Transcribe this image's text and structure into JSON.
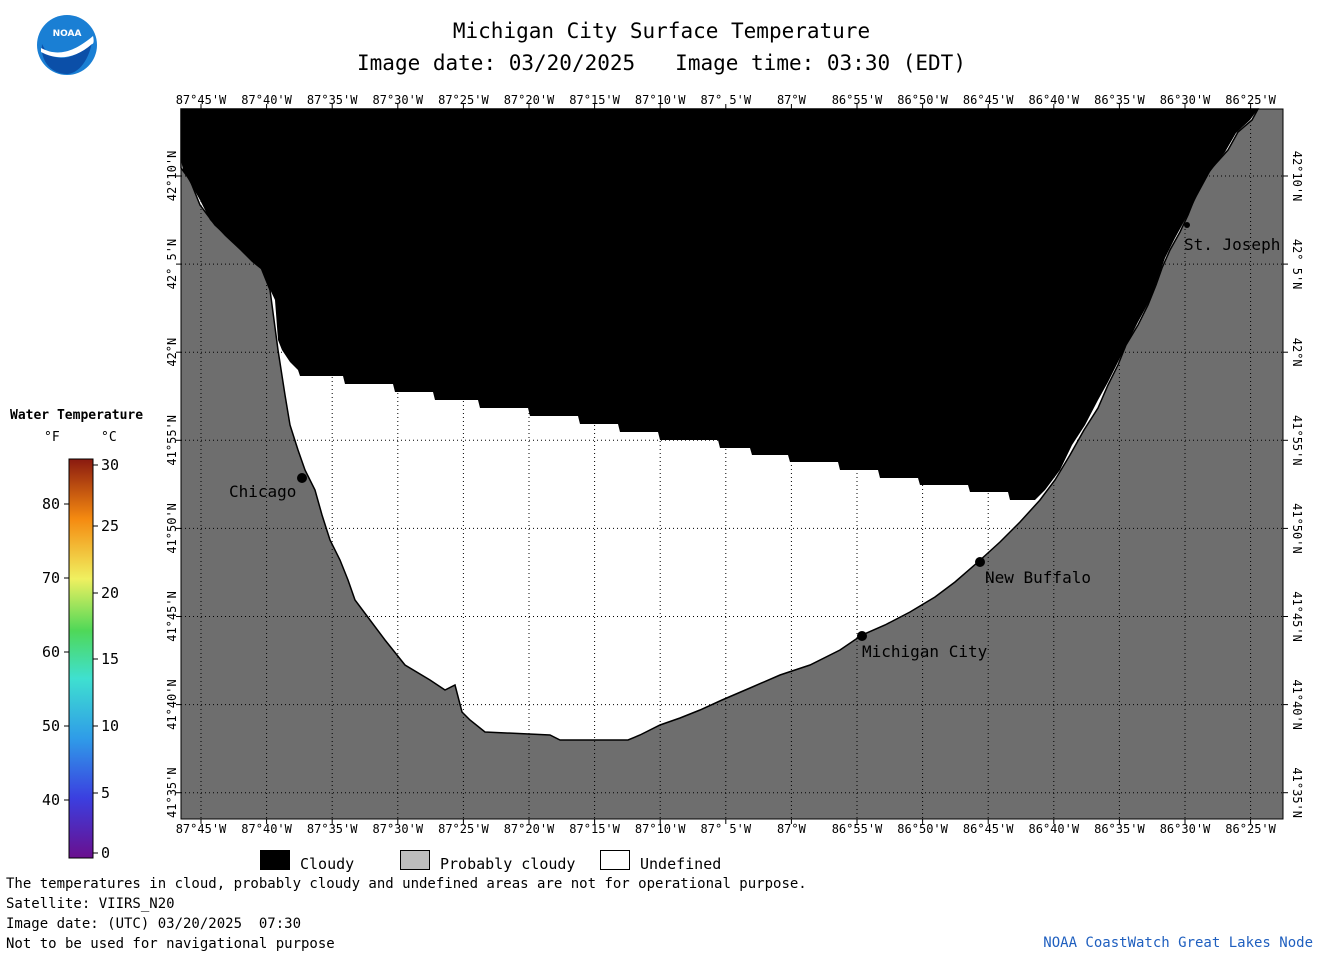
{
  "header": {
    "title": "Michigan City Surface Temperature",
    "image_date": "Image date: 03/20/2025",
    "image_time": "Image time: 03:30 (EDT)"
  },
  "logo": {
    "text": "NOAA",
    "icon": "noaa-logo-icon"
  },
  "map": {
    "lon_labels": [
      "87°45'W",
      "87°40'W",
      "87°35'W",
      "87°30'W",
      "87°25'W",
      "87°20'W",
      "87°15'W",
      "87°10'W",
      "87° 5'W",
      "87°W",
      "86°55'W",
      "86°50'W",
      "86°45'W",
      "86°40'W",
      "86°35'W",
      "86°30'W",
      "86°25'W"
    ],
    "lat_labels": [
      "42°10'N",
      "42° 5'N",
      "42°N",
      "41°55'N",
      "41°50'N",
      "41°45'N",
      "41°40'N",
      "41°35'N"
    ],
    "cities": [
      {
        "name": "Chicago"
      },
      {
        "name": "St. Joseph"
      },
      {
        "name": "New Buffalo"
      },
      {
        "name": "Michigan City"
      }
    ],
    "colors": {
      "cloudy": "#000000",
      "land": "#6e6e6e",
      "undefined": "#ffffff",
      "grid": "#000000"
    }
  },
  "legend": {
    "title": "Water Temperature",
    "unit_f": "°F",
    "unit_c": "°C",
    "f_ticks": [
      "80",
      "70",
      "60",
      "50",
      "40"
    ],
    "c_ticks": [
      "30",
      "25",
      "20",
      "15",
      "10",
      "5",
      "0"
    ]
  },
  "key": {
    "cloudy": "Cloudy",
    "probably_cloudy": "Probably cloudy",
    "undefined": "Undefined"
  },
  "notes": {
    "line1": "The temperatures in cloud, probably cloudy and undefined areas are not for operational purpose.",
    "line2": "Satellite: VIIRS_N20",
    "line3": "Image date: (UTC) 03/20/2025  07:30",
    "line4": "Not to be used for navigational purpose"
  },
  "credit": "NOAA CoastWatch Great Lakes Node"
}
